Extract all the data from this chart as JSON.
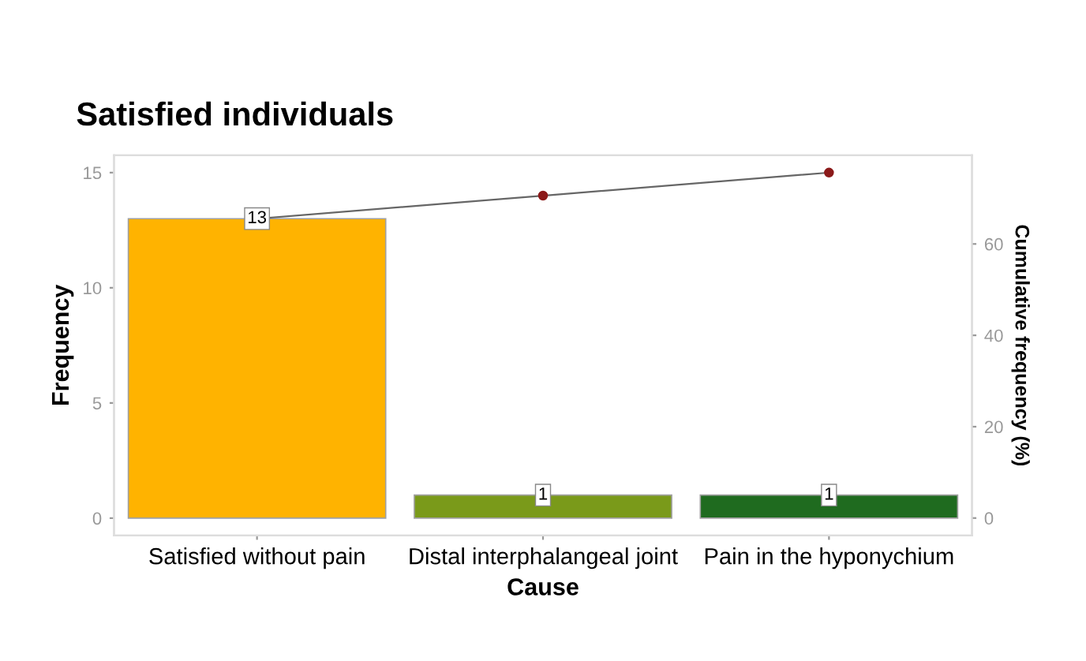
{
  "chart_data": {
    "type": "bar",
    "title": "Satisfied individuals",
    "xlabel": "Cause",
    "ylabel": "Frequency",
    "y2label": "Cumulative frequency (%)",
    "categories": [
      "Satisfied without pain",
      "Distal interphalangeal joint",
      "Pain in the hyponychium"
    ],
    "series": [
      {
        "colors": [
          "#ffb300",
          "#7a9a1a",
          "#1f6b1f"
        ],
        "values": [
          13,
          1,
          1
        ],
        "value_labels": [
          "13",
          "1",
          "1"
        ]
      },
      {
        "type": "line",
        "color": "#8b1a1a",
        "values": [
          13,
          14,
          15
        ],
        "marker": "circle"
      }
    ],
    "ylim": [
      -0.75,
      15.75
    ],
    "yticks": [
      0,
      5,
      10,
      15
    ],
    "y2lim": [
      -3.8,
      79.4
    ],
    "y2ticks": [
      0,
      20,
      40,
      60
    ],
    "grid": false,
    "legend": false
  }
}
